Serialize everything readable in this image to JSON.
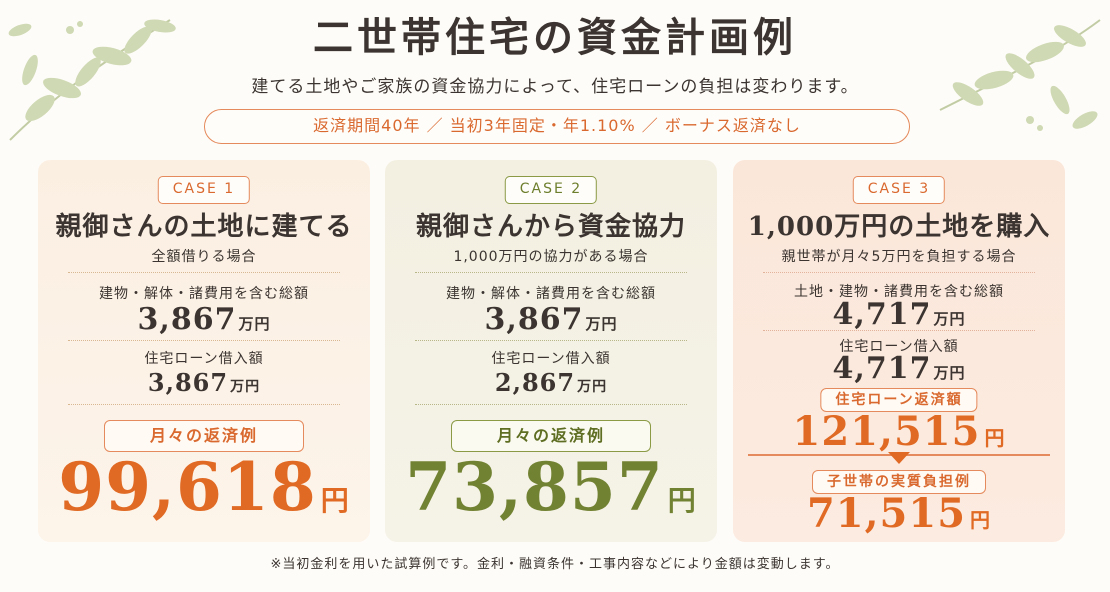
{
  "header": {
    "title": "二世帯住宅の資金計画例",
    "subtitle": "建てる土地やご家族の資金協力によって、住宅ローンの負担は変わります。",
    "conditions": "返済期間40年 ／ 当初3年固定・年1.10% ／ ボーナス返済なし"
  },
  "cases": [
    {
      "badge": "CASE 1",
      "title": "親御さんの土地に建てる",
      "subtitle": "全額借りる場合",
      "total_label": "建物・解体・諸費用を含む総額",
      "total_value": "3,867",
      "total_unit": "万円",
      "loan_label": "住宅ローン借入額",
      "loan_value": "3,867",
      "loan_unit": "万円",
      "monthly_label": "月々の返済例",
      "monthly_value": "99,618",
      "monthly_unit": "円"
    },
    {
      "badge": "CASE 2",
      "title": "親御さんから資金協力",
      "subtitle": "1,000万円の協力がある場合",
      "total_label": "建物・解体・諸費用を含む総額",
      "total_value": "3,867",
      "total_unit": "万円",
      "loan_label": "住宅ローン借入額",
      "loan_value": "2,867",
      "loan_unit": "万円",
      "monthly_label": "月々の返済例",
      "monthly_value": "73,857",
      "monthly_unit": "円"
    },
    {
      "badge": "CASE 3",
      "title": "1,000万円の土地を購入",
      "subtitle": "親世帯が月々5万円を負担する場合",
      "total_label": "土地・建物・諸費用を含む総額",
      "total_value": "4,717",
      "total_unit": "万円",
      "loan_label": "住宅ローン借入額",
      "loan_value": "4,717",
      "loan_unit": "万円",
      "repay_label": "住宅ローン返済額",
      "repay_value": "121,515",
      "repay_unit": "円",
      "burden_label": "子世帯の実質負担例",
      "burden_value": "71,515",
      "burden_unit": "円"
    }
  ],
  "footnote": "※当初金利を用いた試算例です。金利・融資条件・工事内容などにより金額は変動します。",
  "colors": {
    "accent_orange": "#e06a24",
    "accent_olive": "#728233",
    "text": "#3b3430"
  }
}
